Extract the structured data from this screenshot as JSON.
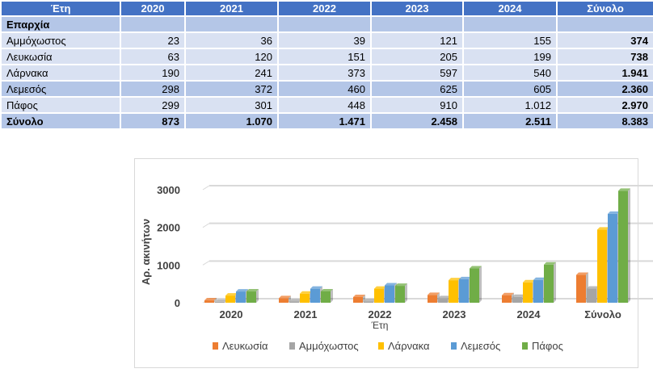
{
  "table": {
    "headers": [
      "Έτη",
      "2020",
      "2021",
      "2022",
      "2023",
      "2024",
      "Σύνολο"
    ],
    "section_label": "Επαρχία",
    "rows": [
      {
        "name": "Αμμόχωστος",
        "values": [
          "23",
          "36",
          "39",
          "121",
          "155"
        ],
        "total": "374"
      },
      {
        "name": "Λευκωσία",
        "values": [
          "63",
          "120",
          "151",
          "205",
          "199"
        ],
        "total": "738"
      },
      {
        "name": "Λάρνακα",
        "values": [
          "190",
          "241",
          "373",
          "597",
          "540"
        ],
        "total": "1.941"
      },
      {
        "name": "Λεμεσός",
        "values": [
          "298",
          "372",
          "460",
          "625",
          "605"
        ],
        "total": "2.360"
      },
      {
        "name": "Πάφος",
        "values": [
          "299",
          "301",
          "448",
          "910",
          "1.012"
        ],
        "total": "2.970"
      }
    ],
    "total_row": {
      "name": "Σύνολο",
      "values": [
        "873",
        "1.070",
        "1.471",
        "2.458",
        "2.511"
      ],
      "total": "8.383"
    }
  },
  "chart_data": {
    "type": "bar",
    "title": "",
    "xlabel": "Έτη",
    "ylabel": "Αρ. ακινήτων",
    "ylim": [
      0,
      3000
    ],
    "yticks": [
      "0",
      "1000",
      "2000",
      "3000"
    ],
    "grid": true,
    "legend_position": "bottom",
    "categories": [
      "2020",
      "2021",
      "2022",
      "2023",
      "2024",
      "Σύνολο"
    ],
    "series": [
      {
        "name": "Λευκωσία",
        "color": "#ed7d31",
        "values": [
          63,
          120,
          151,
          205,
          199,
          738
        ]
      },
      {
        "name": "Αμμόχωστος",
        "color": "#a5a5a5",
        "values": [
          23,
          36,
          39,
          121,
          155,
          374
        ]
      },
      {
        "name": "Λάρνακα",
        "color": "#ffc000",
        "values": [
          190,
          241,
          373,
          597,
          540,
          1941
        ]
      },
      {
        "name": "Λεμεσός",
        "color": "#5b9bd5",
        "values": [
          298,
          372,
          460,
          625,
          605,
          2360
        ]
      },
      {
        "name": "Πάφος",
        "color": "#70ad47",
        "values": [
          299,
          301,
          448,
          910,
          1012,
          2970
        ]
      }
    ]
  }
}
